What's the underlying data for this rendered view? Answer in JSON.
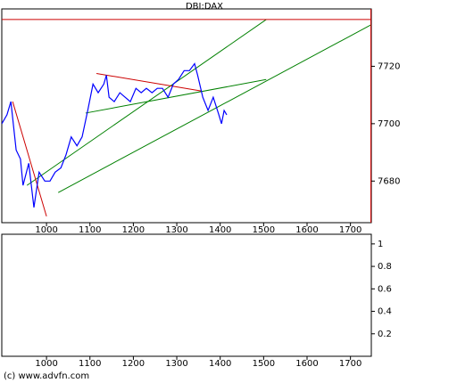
{
  "chart_data": [
    {
      "type": "line",
      "title": "DBI:DAX",
      "x": [
        897,
        909,
        918,
        930,
        940,
        946,
        959,
        971,
        983,
        996,
        1008,
        1020,
        1033,
        1045,
        1057,
        1070,
        1082,
        1095,
        1107,
        1119,
        1132,
        1138,
        1144,
        1156,
        1169,
        1181,
        1193,
        1206,
        1218,
        1230,
        1243,
        1255,
        1267,
        1280,
        1292,
        1304,
        1317,
        1329,
        1341,
        1348,
        1360,
        1372,
        1384,
        1397,
        1403,
        1409,
        1415
      ],
      "series": [
        {
          "color": "#0000ff",
          "values": [
            7700,
            7703.1,
            7707.7,
            7690.8,
            7687.7,
            7678.5,
            7686.2,
            7670.8,
            7683.1,
            7680,
            7680,
            7683.1,
            7684.6,
            7689.2,
            7695.4,
            7692.3,
            7695.4,
            7704.6,
            7713.8,
            7710.8,
            7713.8,
            7716.9,
            7709.2,
            7707.7,
            7710.8,
            7709.2,
            7707.7,
            7712.3,
            7710.8,
            7712.3,
            7710.8,
            7712.3,
            7712.3,
            7709.2,
            7713.8,
            7715.4,
            7718.5,
            7718.5,
            7720.9,
            7716.9,
            7709.2,
            7704.6,
            7709.2,
            7703.1,
            7700,
            7704.6,
            7703.1
          ]
        }
      ],
      "lines": [
        {
          "color": "#008000",
          "x": [
            955,
            1506
          ],
          "y": [
            7678.5,
            7736.3
          ]
        },
        {
          "color": "#008000",
          "x": [
            1027,
            1748
          ],
          "y": [
            7676,
            7734.5
          ]
        },
        {
          "color": "#008000",
          "x": [
            1090,
            1506
          ],
          "y": [
            7703.7,
            7715.4
          ]
        },
        {
          "color": "#cc0000",
          "x": [
            922,
            1000
          ],
          "y": [
            7707.7,
            7667.7
          ]
        },
        {
          "color": "#cc0000",
          "x": [
            1115,
            1356
          ],
          "y": [
            7717.5,
            7711.4
          ]
        },
        {
          "color": "#cc0000",
          "x": [
            897,
            1748
          ],
          "y": [
            7736.3,
            7736.3
          ]
        },
        {
          "color": "#cc0000",
          "x": [
            1747,
            1747
          ],
          "y": [
            7665.5,
            7740
          ]
        }
      ],
      "xlim": [
        897,
        1748
      ],
      "xticks": [
        1000,
        1100,
        1200,
        1300,
        1400,
        1500,
        1600,
        1700
      ],
      "ylim": [
        7665.5,
        7740
      ],
      "yticks": [
        7680,
        7700,
        7720
      ]
    },
    {
      "type": "line",
      "xlim": [
        897,
        1748
      ],
      "xticks": [
        1000,
        1100,
        1200,
        1300,
        1400,
        1500,
        1600,
        1700
      ],
      "ylim": [
        0,
        1.086
      ],
      "yticks": [
        0.2,
        0.4,
        0.6,
        0.8,
        1
      ]
    }
  ],
  "credit": "(c) www.advfn.com"
}
